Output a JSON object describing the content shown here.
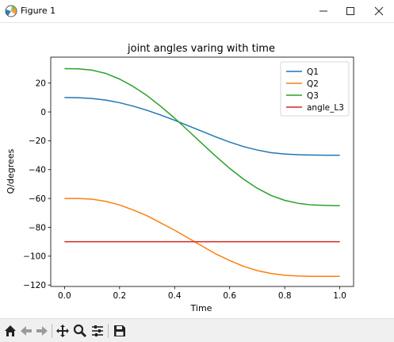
{
  "window": {
    "title": "Figure 1",
    "controls": [
      "minimize",
      "maximize",
      "close"
    ]
  },
  "toolbar": {
    "buttons": [
      "home-icon",
      "back-icon",
      "forward-icon",
      "pan-icon",
      "zoom-icon",
      "configure-subplots-icon",
      "save-icon"
    ]
  },
  "chart_data": {
    "type": "line",
    "title": "joint angles varing with time",
    "xlabel": "Time",
    "ylabel": "Q/degrees",
    "xlim": [
      -0.05,
      1.05
    ],
    "ylim": [
      -121,
      38
    ],
    "xticks": [
      0.0,
      0.2,
      0.4,
      0.6,
      0.8,
      1.0
    ],
    "xtick_labels": [
      "0.0",
      "0.2",
      "0.4",
      "0.6",
      "0.8",
      "1.0"
    ],
    "yticks": [
      20,
      0,
      -20,
      -40,
      -60,
      -80,
      -100,
      -120
    ],
    "ytick_labels": [
      "20",
      "0",
      "−20",
      "−40",
      "−60",
      "−80",
      "−100",
      "−120"
    ],
    "legend_position": "top-right",
    "grid": false,
    "x": [
      0.0,
      0.05,
      0.1,
      0.15,
      0.2,
      0.25,
      0.3,
      0.35,
      0.4,
      0.45,
      0.5,
      0.55,
      0.6,
      0.65,
      0.7,
      0.75,
      0.8,
      0.85,
      0.9,
      0.95,
      1.0
    ],
    "series": [
      {
        "name": "Q1",
        "color": "#1f77b4",
        "values": [
          10.0,
          9.9,
          9.3,
          8.2,
          6.4,
          4.0,
          1.1,
          -2.2,
          -5.8,
          -9.6,
          -13.5,
          -17.3,
          -20.9,
          -24.0,
          -26.4,
          -28.2,
          -29.2,
          -29.7,
          -29.9,
          -30.0,
          -30.0
        ]
      },
      {
        "name": "Q2",
        "color": "#ff7f0e",
        "values": [
          -60.0,
          -60.0,
          -60.5,
          -62.0,
          -64.5,
          -68.0,
          -72.0,
          -77.0,
          -82.0,
          -87.5,
          -93.0,
          -98.5,
          -103.0,
          -107.0,
          -110.0,
          -112.0,
          -113.2,
          -113.8,
          -114.0,
          -114.0,
          -114.0
        ]
      },
      {
        "name": "Q3",
        "color": "#2ca02c",
        "values": [
          30.0,
          29.9,
          29.0,
          26.7,
          22.8,
          17.6,
          11.3,
          3.8,
          -4.3,
          -13.1,
          -22.0,
          -30.8,
          -39.1,
          -46.6,
          -52.9,
          -57.9,
          -61.3,
          -63.4,
          -64.5,
          -64.8,
          -65.0
        ]
      },
      {
        "name": "angle_L3",
        "color": "#d62728",
        "values": [
          -90,
          -90,
          -90,
          -90,
          -90,
          -90,
          -90,
          -90,
          -90,
          -90,
          -90,
          -90,
          -90,
          -90,
          -90,
          -90,
          -90,
          -90,
          -90,
          -90,
          -90
        ]
      }
    ]
  }
}
